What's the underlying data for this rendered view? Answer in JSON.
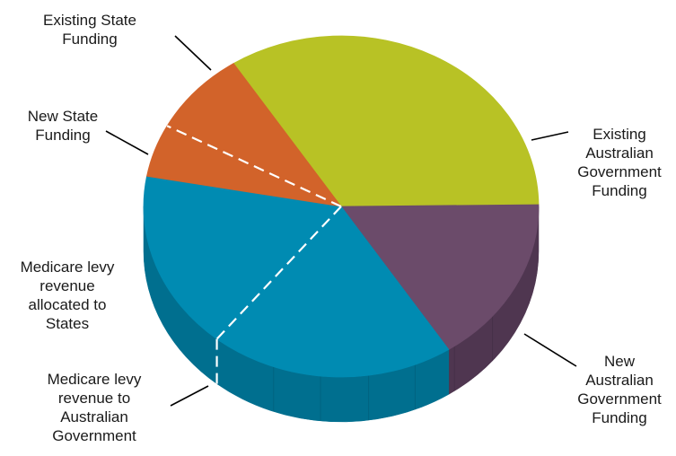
{
  "chart_data": {
    "type": "pie",
    "title": "",
    "style": "3d",
    "slices": [
      {
        "label": "Existing State Funding",
        "lines": [
          "Existing State",
          "Funding"
        ],
        "value": 34,
        "color": "#b8c225",
        "side_color": "#8f9720"
      },
      {
        "label": "Existing Australian Government Funding",
        "lines": [
          "Existing",
          "Australian",
          "Government",
          "Funding"
        ],
        "value": 16,
        "color": "#6b4b6a",
        "side_color": "#4f3650"
      },
      {
        "label": "New Australian Government Funding",
        "lines": [
          "New",
          "Australian",
          "Government",
          "Funding"
        ],
        "value": 20,
        "color": "#008bb2",
        "side_color": "#006f8f"
      },
      {
        "label": "Medicare levy revenue to Australian Government",
        "lines": [
          "Medicare levy",
          "revenue to",
          "Australian",
          "Government"
        ],
        "value": 17,
        "color": "#008bb2",
        "side_color": "#006f8f"
      },
      {
        "label": "Medicare levy revenue allocated to States",
        "lines": [
          "Medicare levy",
          "revenue",
          "allocated to",
          "States"
        ],
        "value": 5,
        "color": "#d2632a",
        "side_color": "#8e3f14"
      },
      {
        "label": "New State Funding",
        "lines": [
          "New State",
          "Funding"
        ],
        "value": 8,
        "color": "#d2632a",
        "side_color": "#8e3f14"
      }
    ],
    "legend": "none"
  }
}
